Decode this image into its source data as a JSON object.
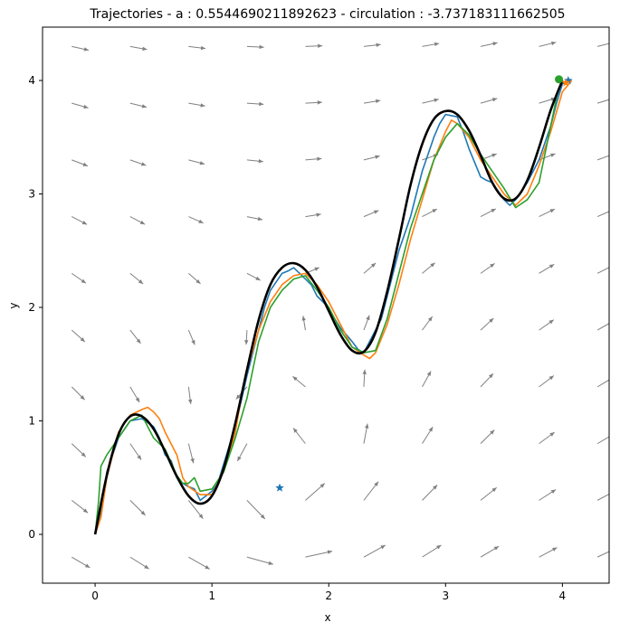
{
  "chart_data": {
    "type": "line",
    "title": "Trajectories - a : 0.5544690211892623 - circulation : -3.737183111662505",
    "xlabel": "x",
    "ylabel": "y",
    "xlim": [
      -0.45,
      4.4
    ],
    "ylim": [
      -0.43,
      4.47
    ],
    "xticks": [
      0,
      1,
      2,
      3,
      4
    ],
    "yticks": [
      0,
      1,
      2,
      3,
      4
    ],
    "grid": false,
    "legend": "none",
    "colors": {
      "series_1": "#1f77b4",
      "series_2": "#ff7f0e",
      "series_3": "#2ca02c",
      "reference": "#000000",
      "quiver": "#808080",
      "marker": "#1f77b4"
    },
    "reference_curve": {
      "x": [
        0.0,
        0.1,
        0.2,
        0.3,
        0.4,
        0.5,
        0.6,
        0.7,
        0.8,
        0.9,
        1.0,
        1.1,
        1.2,
        1.3,
        1.4,
        1.5,
        1.6,
        1.7,
        1.8,
        1.9,
        2.0,
        2.1,
        2.2,
        2.3,
        2.4,
        2.5,
        2.6,
        2.7,
        2.8,
        2.9,
        3.0,
        3.1,
        3.2,
        3.3,
        3.4,
        3.5,
        3.6,
        3.7,
        3.8,
        3.9,
        4.0
      ],
      "y": [
        0.0,
        0.52,
        0.88,
        1.04,
        1.04,
        0.93,
        0.73,
        0.51,
        0.34,
        0.27,
        0.34,
        0.58,
        0.98,
        1.45,
        1.89,
        2.2,
        2.35,
        2.39,
        2.33,
        2.18,
        1.97,
        1.76,
        1.62,
        1.61,
        1.78,
        2.14,
        2.6,
        3.08,
        3.44,
        3.66,
        3.73,
        3.7,
        3.56,
        3.34,
        3.1,
        2.96,
        2.96,
        3.12,
        3.41,
        3.74,
        4.0
      ]
    },
    "series": [
      {
        "x": [
          0.0,
          0.05,
          0.1,
          0.2,
          0.3,
          0.4,
          0.5,
          0.55,
          0.6,
          0.65,
          0.7,
          0.75,
          0.8,
          0.85,
          0.9,
          1.0,
          1.05,
          1.1,
          1.2,
          1.3,
          1.35,
          1.4,
          1.45,
          1.5,
          1.6,
          1.65,
          1.7,
          1.8,
          1.85,
          1.9,
          2.0,
          2.05,
          2.1,
          2.2,
          2.25,
          2.3,
          2.4,
          2.45,
          2.5,
          2.55,
          2.6,
          2.7,
          2.75,
          2.8,
          2.9,
          2.95,
          3.0,
          3.1,
          3.15,
          3.2,
          3.3,
          3.35,
          3.4,
          3.5,
          3.55,
          3.6,
          3.7,
          3.8,
          3.85,
          3.9,
          3.95,
          4.0,
          4.05
        ],
        "y": [
          0.02,
          0.2,
          0.55,
          0.85,
          1.0,
          1.02,
          0.95,
          0.85,
          0.7,
          0.65,
          0.5,
          0.45,
          0.42,
          0.4,
          0.3,
          0.38,
          0.45,
          0.62,
          0.95,
          1.4,
          1.6,
          1.8,
          2.0,
          2.15,
          2.3,
          2.32,
          2.35,
          2.25,
          2.2,
          2.1,
          2.0,
          1.9,
          1.82,
          1.7,
          1.63,
          1.6,
          1.8,
          1.9,
          2.1,
          2.3,
          2.5,
          2.8,
          3.0,
          3.2,
          3.5,
          3.62,
          3.7,
          3.68,
          3.55,
          3.4,
          3.15,
          3.12,
          3.1,
          2.95,
          2.9,
          2.95,
          3.1,
          3.3,
          3.45,
          3.6,
          3.8,
          3.97,
          4.0
        ]
      },
      {
        "x": [
          0.0,
          0.05,
          0.1,
          0.2,
          0.3,
          0.4,
          0.45,
          0.5,
          0.55,
          0.6,
          0.7,
          0.75,
          0.8,
          0.9,
          1.0,
          1.1,
          1.2,
          1.25,
          1.3,
          1.4,
          1.5,
          1.6,
          1.7,
          1.8,
          1.85,
          1.9,
          2.0,
          2.1,
          2.2,
          2.3,
          2.35,
          2.4,
          2.5,
          2.6,
          2.7,
          2.8,
          2.9,
          3.0,
          3.05,
          3.1,
          3.2,
          3.3,
          3.4,
          3.5,
          3.6,
          3.7,
          3.8,
          3.9,
          4.0,
          4.08
        ],
        "y": [
          0.0,
          0.15,
          0.5,
          0.9,
          1.05,
          1.1,
          1.12,
          1.08,
          1.02,
          0.9,
          0.7,
          0.5,
          0.42,
          0.35,
          0.35,
          0.55,
          0.9,
          1.2,
          1.45,
          1.8,
          2.05,
          2.2,
          2.28,
          2.3,
          2.25,
          2.2,
          2.05,
          1.85,
          1.65,
          1.58,
          1.55,
          1.6,
          1.85,
          2.2,
          2.6,
          2.95,
          3.3,
          3.55,
          3.65,
          3.62,
          3.5,
          3.3,
          3.15,
          3.0,
          2.9,
          3.0,
          3.25,
          3.55,
          3.9,
          4.0
        ]
      },
      {
        "x": [
          0.0,
          0.03,
          0.05,
          0.1,
          0.2,
          0.3,
          0.4,
          0.5,
          0.6,
          0.7,
          0.75,
          0.8,
          0.85,
          0.9,
          1.0,
          1.1,
          1.2,
          1.3,
          1.35,
          1.4,
          1.5,
          1.6,
          1.7,
          1.8,
          1.9,
          2.0,
          2.1,
          2.2,
          2.3,
          2.4,
          2.5,
          2.6,
          2.7,
          2.8,
          2.9,
          3.0,
          3.1,
          3.2,
          3.3,
          3.4,
          3.5,
          3.6,
          3.7,
          3.8,
          3.85,
          3.9,
          3.95,
          4.0
        ],
        "y": [
          0.0,
          0.3,
          0.6,
          0.7,
          0.85,
          1.0,
          1.05,
          0.85,
          0.75,
          0.52,
          0.45,
          0.45,
          0.5,
          0.38,
          0.4,
          0.55,
          0.85,
          1.2,
          1.45,
          1.7,
          2.0,
          2.15,
          2.25,
          2.28,
          2.15,
          2.0,
          1.8,
          1.65,
          1.6,
          1.62,
          1.9,
          2.3,
          2.7,
          3.0,
          3.3,
          3.5,
          3.62,
          3.52,
          3.35,
          3.2,
          3.05,
          2.88,
          2.95,
          3.1,
          3.35,
          3.6,
          3.85,
          4.02
        ]
      }
    ],
    "markers": [
      {
        "x": 1.58,
        "y": 0.41,
        "shape": "star",
        "color": "#1f77b4"
      },
      {
        "x": 3.97,
        "y": 4.01,
        "shape": "circle",
        "color": "#2ca02c"
      },
      {
        "x": 4.05,
        "y": 4.0,
        "shape": "star",
        "color": "#1f77b4"
      },
      {
        "x": 4.03,
        "y": 3.98,
        "shape": "star",
        "color": "#ff7f0e"
      }
    ],
    "quiver": {
      "x_positions": [
        -0.2,
        0.3,
        0.8,
        1.3,
        1.8,
        2.3,
        2.8,
        3.3,
        3.8,
        4.3
      ],
      "y_positions": [
        -0.2,
        0.3,
        0.8,
        1.3,
        1.8,
        2.3,
        2.8,
        3.3,
        3.8,
        4.3
      ]
    }
  }
}
